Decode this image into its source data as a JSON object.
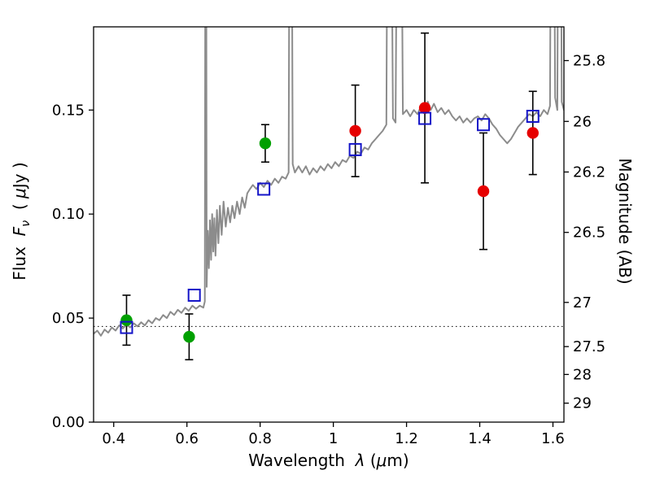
{
  "figure": {
    "background": "#ffffff"
  },
  "chart_data": {
    "type": "line+scatter",
    "title": "",
    "xlabel_parts": [
      "Wavelength  ",
      "λ",
      " (",
      "μ",
      "m)"
    ],
    "ylabel_left_parts": [
      "Flux  ",
      "F",
      "ν",
      "  ( ",
      "μ",
      "Jy )"
    ],
    "ylabel_right": "Magnitude (AB)",
    "xlim": [
      0.345,
      1.63
    ],
    "ylim": [
      0,
      0.19
    ],
    "grid": false,
    "x_ticks": {
      "values": [
        0.4,
        0.6,
        0.8,
        1.0,
        1.2,
        1.4,
        1.6
      ],
      "labels": [
        "0.4",
        "0.6",
        "0.8",
        "1",
        "1.2",
        "1.4",
        "1.6"
      ]
    },
    "y_ticks_left": {
      "values": [
        0.0,
        0.05,
        0.1,
        0.15
      ],
      "labels": [
        "0.00",
        "0.05",
        "0.10",
        "0.15"
      ]
    },
    "y_ticks_right": {
      "magnitudes": [
        25.8,
        26,
        26.2,
        26.5,
        27,
        27.5,
        28,
        29
      ],
      "labels": [
        "25.8",
        "26",
        "26.2",
        "26.5",
        "27",
        "27.5",
        "28",
        "29"
      ],
      "ab_zeropoint": 23.9
    },
    "dotted_guide_flux": 0.046,
    "colors": {
      "spectrum": "#8c8c8c",
      "green_points": "#00a000",
      "red_points": "#e60000",
      "blue_squares": "#1414c8",
      "errorbar": "#000000",
      "axis": "#000000"
    },
    "spectrum": {
      "name": "model-spectrum",
      "points": [
        [
          0.345,
          0.0425
        ],
        [
          0.355,
          0.044
        ],
        [
          0.365,
          0.0415
        ],
        [
          0.375,
          0.0445
        ],
        [
          0.385,
          0.043
        ],
        [
          0.395,
          0.0455
        ],
        [
          0.405,
          0.044
        ],
        [
          0.415,
          0.0465
        ],
        [
          0.425,
          0.045
        ],
        [
          0.435,
          0.047
        ],
        [
          0.445,
          0.0455
        ],
        [
          0.455,
          0.0475
        ],
        [
          0.465,
          0.046
        ],
        [
          0.475,
          0.048
        ],
        [
          0.485,
          0.0465
        ],
        [
          0.495,
          0.049
        ],
        [
          0.505,
          0.0475
        ],
        [
          0.515,
          0.05
        ],
        [
          0.525,
          0.049
        ],
        [
          0.535,
          0.0515
        ],
        [
          0.545,
          0.05
        ],
        [
          0.555,
          0.053
        ],
        [
          0.565,
          0.0515
        ],
        [
          0.575,
          0.054
        ],
        [
          0.585,
          0.0525
        ],
        [
          0.595,
          0.055
        ],
        [
          0.605,
          0.0535
        ],
        [
          0.615,
          0.056
        ],
        [
          0.625,
          0.0545
        ],
        [
          0.635,
          0.056
        ],
        [
          0.645,
          0.055
        ],
        [
          0.649,
          0.058
        ],
        [
          0.6515,
          0.4
        ],
        [
          0.654,
          0.065
        ],
        [
          0.657,
          0.092
        ],
        [
          0.66,
          0.074
        ],
        [
          0.663,
          0.097
        ],
        [
          0.666,
          0.078
        ],
        [
          0.669,
          0.1
        ],
        [
          0.672,
          0.082
        ],
        [
          0.675,
          0.098
        ],
        [
          0.678,
          0.08
        ],
        [
          0.682,
          0.102
        ],
        [
          0.686,
          0.086
        ],
        [
          0.69,
          0.104
        ],
        [
          0.695,
          0.09
        ],
        [
          0.7,
          0.106
        ],
        [
          0.706,
          0.094
        ],
        [
          0.712,
          0.103
        ],
        [
          0.718,
          0.096
        ],
        [
          0.724,
          0.104
        ],
        [
          0.73,
          0.098
        ],
        [
          0.737,
          0.106
        ],
        [
          0.744,
          0.1
        ],
        [
          0.751,
          0.108
        ],
        [
          0.758,
          0.103
        ],
        [
          0.765,
          0.11
        ],
        [
          0.772,
          0.112
        ],
        [
          0.78,
          0.114
        ],
        [
          0.79,
          0.112
        ],
        [
          0.8,
          0.115
        ],
        [
          0.81,
          0.113
        ],
        [
          0.82,
          0.116
        ],
        [
          0.83,
          0.114
        ],
        [
          0.84,
          0.117
        ],
        [
          0.85,
          0.115
        ],
        [
          0.86,
          0.118
        ],
        [
          0.87,
          0.117
        ],
        [
          0.878,
          0.12
        ],
        [
          0.883,
          0.42
        ],
        [
          0.889,
          0.124
        ],
        [
          0.895,
          0.12
        ],
        [
          0.905,
          0.123
        ],
        [
          0.915,
          0.12
        ],
        [
          0.925,
          0.123
        ],
        [
          0.935,
          0.119
        ],
        [
          0.945,
          0.122
        ],
        [
          0.955,
          0.12
        ],
        [
          0.965,
          0.123
        ],
        [
          0.975,
          0.121
        ],
        [
          0.985,
          0.124
        ],
        [
          0.995,
          0.122
        ],
        [
          1.005,
          0.125
        ],
        [
          1.015,
          0.123
        ],
        [
          1.025,
          0.126
        ],
        [
          1.035,
          0.125
        ],
        [
          1.045,
          0.128
        ],
        [
          1.055,
          0.127
        ],
        [
          1.065,
          0.13
        ],
        [
          1.075,
          0.129
        ],
        [
          1.085,
          0.132
        ],
        [
          1.095,
          0.131
        ],
        [
          1.105,
          0.134
        ],
        [
          1.115,
          0.136
        ],
        [
          1.125,
          0.138
        ],
        [
          1.135,
          0.14
        ],
        [
          1.145,
          0.143
        ],
        [
          1.152,
          0.42
        ],
        [
          1.163,
          0.146
        ],
        [
          1.17,
          0.144
        ],
        [
          1.18,
          0.42
        ],
        [
          1.19,
          0.148
        ],
        [
          1.2,
          0.15
        ],
        [
          1.21,
          0.147
        ],
        [
          1.22,
          0.15
        ],
        [
          1.23,
          0.148
        ],
        [
          1.24,
          0.152
        ],
        [
          1.25,
          0.15
        ],
        [
          1.258,
          0.154
        ],
        [
          1.266,
          0.15
        ],
        [
          1.275,
          0.153
        ],
        [
          1.285,
          0.149
        ],
        [
          1.295,
          0.151
        ],
        [
          1.305,
          0.148
        ],
        [
          1.315,
          0.15
        ],
        [
          1.325,
          0.147
        ],
        [
          1.335,
          0.145
        ],
        [
          1.345,
          0.147
        ],
        [
          1.355,
          0.144
        ],
        [
          1.365,
          0.146
        ],
        [
          1.375,
          0.144
        ],
        [
          1.385,
          0.146
        ],
        [
          1.395,
          0.147
        ],
        [
          1.405,
          0.145
        ],
        [
          1.415,
          0.148
        ],
        [
          1.425,
          0.146
        ],
        [
          1.435,
          0.143
        ],
        [
          1.445,
          0.141
        ],
        [
          1.455,
          0.138
        ],
        [
          1.465,
          0.136
        ],
        [
          1.475,
          0.134
        ],
        [
          1.485,
          0.136
        ],
        [
          1.495,
          0.139
        ],
        [
          1.505,
          0.142
        ],
        [
          1.515,
          0.144
        ],
        [
          1.525,
          0.146
        ],
        [
          1.535,
          0.148
        ],
        [
          1.545,
          0.147
        ],
        [
          1.555,
          0.149
        ],
        [
          1.565,
          0.147
        ],
        [
          1.575,
          0.15
        ],
        [
          1.585,
          0.148
        ],
        [
          1.592,
          0.152
        ],
        [
          1.598,
          0.42
        ],
        [
          1.606,
          0.156
        ],
        [
          1.612,
          0.15
        ],
        [
          1.618,
          0.42
        ],
        [
          1.624,
          0.154
        ],
        [
          1.63,
          0.15
        ]
      ]
    },
    "series": [
      {
        "name": "observed-photometry-optical",
        "marker": "circle",
        "color_key": "green_points",
        "points": [
          {
            "x": 0.435,
            "y": 0.049,
            "yerr": 0.012
          },
          {
            "x": 0.606,
            "y": 0.041,
            "yerr": 0.011
          },
          {
            "x": 0.814,
            "y": 0.134,
            "yerr": 0.009
          }
        ]
      },
      {
        "name": "observed-photometry-infrared",
        "marker": "circle",
        "color_key": "red_points",
        "points": [
          {
            "x": 1.06,
            "y": 0.14,
            "yerr": 0.022
          },
          {
            "x": 1.25,
            "y": 0.151,
            "yerr": 0.036
          },
          {
            "x": 1.41,
            "y": 0.111,
            "yerr": 0.028
          },
          {
            "x": 1.545,
            "y": 0.139,
            "yerr": 0.02
          }
        ]
      },
      {
        "name": "model-photometry",
        "marker": "open-square",
        "color_key": "blue_squares",
        "points": [
          {
            "x": 0.435,
            "y": 0.0455
          },
          {
            "x": 0.62,
            "y": 0.061
          },
          {
            "x": 0.81,
            "y": 0.112
          },
          {
            "x": 1.06,
            "y": 0.131
          },
          {
            "x": 1.25,
            "y": 0.146
          },
          {
            "x": 1.41,
            "y": 0.143
          },
          {
            "x": 1.545,
            "y": 0.147
          }
        ]
      }
    ]
  }
}
